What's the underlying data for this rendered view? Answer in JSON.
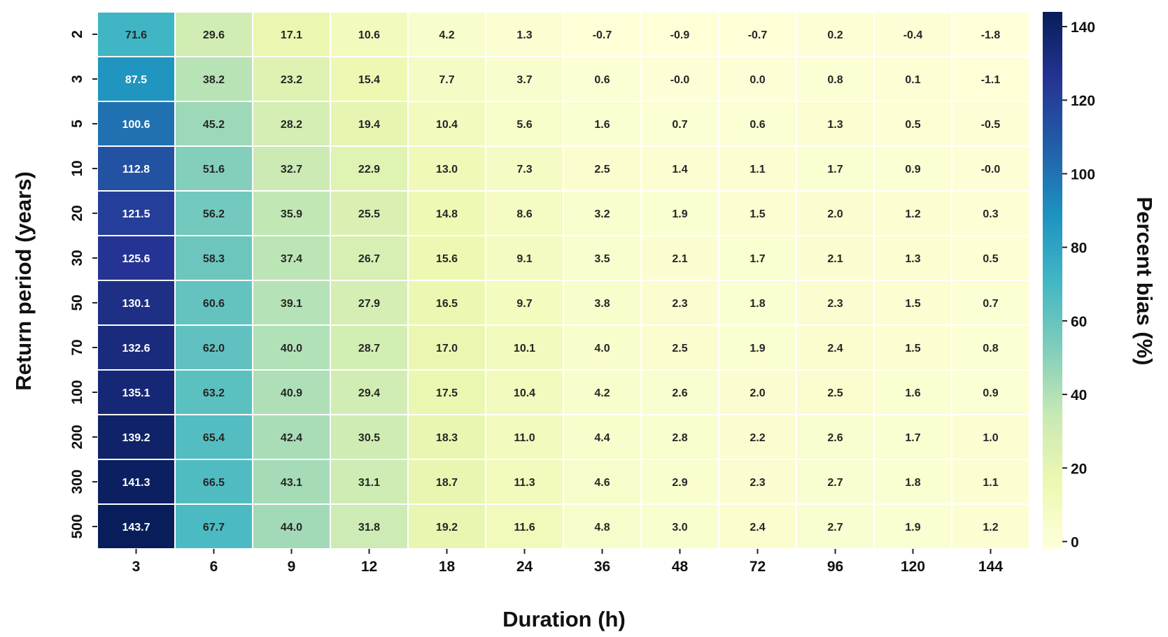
{
  "chart_data": {
    "type": "heatmap",
    "xlabel": "Duration (h)",
    "ylabel": "Return period (years)",
    "colorbar_label": "Percent bias (%)",
    "x_categories": [
      "3",
      "6",
      "9",
      "12",
      "18",
      "24",
      "36",
      "48",
      "72",
      "96",
      "120",
      "144"
    ],
    "y_categories": [
      "2",
      "3",
      "5",
      "10",
      "20",
      "30",
      "50",
      "70",
      "100",
      "200",
      "300",
      "500"
    ],
    "values": [
      [
        71.6,
        29.6,
        17.1,
        10.6,
        4.2,
        1.3,
        -0.7,
        -0.9,
        -0.7,
        0.2,
        -0.4,
        -1.8
      ],
      [
        87.5,
        38.2,
        23.2,
        15.4,
        7.7,
        3.7,
        0.6,
        -0.0,
        0.0,
        0.8,
        0.1,
        -1.1
      ],
      [
        100.6,
        45.2,
        28.2,
        19.4,
        10.4,
        5.6,
        1.6,
        0.7,
        0.6,
        1.3,
        0.5,
        -0.5
      ],
      [
        112.8,
        51.6,
        32.7,
        22.9,
        13.0,
        7.3,
        2.5,
        1.4,
        1.1,
        1.7,
        0.9,
        -0.0
      ],
      [
        121.5,
        56.2,
        35.9,
        25.5,
        14.8,
        8.6,
        3.2,
        1.9,
        1.5,
        2.0,
        1.2,
        0.3
      ],
      [
        125.6,
        58.3,
        37.4,
        26.7,
        15.6,
        9.1,
        3.5,
        2.1,
        1.7,
        2.1,
        1.3,
        0.5
      ],
      [
        130.1,
        60.6,
        39.1,
        27.9,
        16.5,
        9.7,
        3.8,
        2.3,
        1.8,
        2.3,
        1.5,
        0.7
      ],
      [
        132.6,
        62.0,
        40.0,
        28.7,
        17.0,
        10.1,
        4.0,
        2.5,
        1.9,
        2.4,
        1.5,
        0.8
      ],
      [
        135.1,
        63.2,
        40.9,
        29.4,
        17.5,
        10.4,
        4.2,
        2.6,
        2.0,
        2.5,
        1.6,
        0.9
      ],
      [
        139.2,
        65.4,
        42.4,
        30.5,
        18.3,
        11.0,
        4.4,
        2.8,
        2.2,
        2.6,
        1.7,
        1.0
      ],
      [
        141.3,
        66.5,
        43.1,
        31.1,
        18.7,
        11.3,
        4.6,
        2.9,
        2.3,
        2.7,
        1.8,
        1.1
      ],
      [
        143.7,
        67.7,
        44.0,
        31.8,
        19.2,
        11.6,
        4.8,
        3.0,
        2.4,
        2.7,
        1.9,
        1.2
      ]
    ],
    "cell_labels": [
      [
        "71.6",
        "29.6",
        "17.1",
        "10.6",
        "4.2",
        "1.3",
        "-0.7",
        "-0.9",
        "-0.7",
        "0.2",
        "-0.4",
        "-1.8"
      ],
      [
        "87.5",
        "38.2",
        "23.2",
        "15.4",
        "7.7",
        "3.7",
        "0.6",
        "-0.0",
        "0.0",
        "0.8",
        "0.1",
        "-1.1"
      ],
      [
        "100.6",
        "45.2",
        "28.2",
        "19.4",
        "10.4",
        "5.6",
        "1.6",
        "0.7",
        "0.6",
        "1.3",
        "0.5",
        "-0.5"
      ],
      [
        "112.8",
        "51.6",
        "32.7",
        "22.9",
        "13.0",
        "7.3",
        "2.5",
        "1.4",
        "1.1",
        "1.7",
        "0.9",
        "-0.0"
      ],
      [
        "121.5",
        "56.2",
        "35.9",
        "25.5",
        "14.8",
        "8.6",
        "3.2",
        "1.9",
        "1.5",
        "2.0",
        "1.2",
        "0.3"
      ],
      [
        "125.6",
        "58.3",
        "37.4",
        "26.7",
        "15.6",
        "9.1",
        "3.5",
        "2.1",
        "1.7",
        "2.1",
        "1.3",
        "0.5"
      ],
      [
        "130.1",
        "60.6",
        "39.1",
        "27.9",
        "16.5",
        "9.7",
        "3.8",
        "2.3",
        "1.8",
        "2.3",
        "1.5",
        "0.7"
      ],
      [
        "132.6",
        "62.0",
        "40.0",
        "28.7",
        "17.0",
        "10.1",
        "4.0",
        "2.5",
        "1.9",
        "2.4",
        "1.5",
        "0.8"
      ],
      [
        "135.1",
        "63.2",
        "40.9",
        "29.4",
        "17.5",
        "10.4",
        "4.2",
        "2.6",
        "2.0",
        "2.5",
        "1.6",
        "0.9"
      ],
      [
        "139.2",
        "65.4",
        "42.4",
        "30.5",
        "18.3",
        "11.0",
        "4.4",
        "2.8",
        "2.2",
        "2.6",
        "1.7",
        "1.0"
      ],
      [
        "141.3",
        "66.5",
        "43.1",
        "31.1",
        "18.7",
        "11.3",
        "4.6",
        "2.9",
        "2.3",
        "2.7",
        "1.8",
        "1.1"
      ],
      [
        "143.7",
        "67.7",
        "44.0",
        "31.8",
        "19.2",
        "11.6",
        "4.8",
        "3.0",
        "2.4",
        "2.7",
        "1.9",
        "1.2"
      ]
    ],
    "color_range": [
      -2,
      144
    ],
    "colormap": "YlGnBu",
    "colormap_stops": [
      "#ffffd9",
      "#edf8b1",
      "#c7e9b4",
      "#7fcdbb",
      "#41b6c4",
      "#1d91c0",
      "#225ea8",
      "#253494",
      "#081d58"
    ],
    "colorbar_ticks": [
      0,
      20,
      40,
      60,
      80,
      100,
      120,
      140
    ],
    "grid": true,
    "cell_border_color": "#ffffff",
    "legend_placement": "right"
  }
}
